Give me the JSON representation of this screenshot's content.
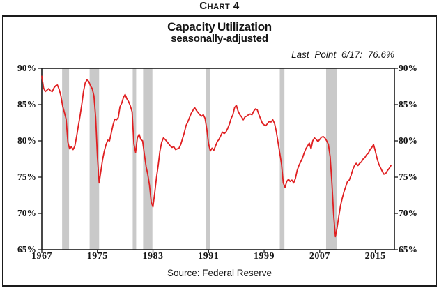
{
  "page": {
    "caption": "Chart 4"
  },
  "chart": {
    "title_line1": "Capacity Utilization",
    "title_line2": "seasonally-adjusted",
    "annotation": "Last Point 6/17: 76.6%",
    "source": "Source: Federal Reserve"
  },
  "chart_data": {
    "type": "line",
    "title": "Capacity Utilization",
    "subtitle": "seasonally-adjusted",
    "series_name": "Capacity Utilization (%)",
    "x_start": 1967.0,
    "x_step": 0.25,
    "values": [
      88.9,
      87.3,
      86.8,
      87.0,
      87.2,
      86.9,
      86.8,
      87.3,
      87.6,
      87.7,
      87.1,
      86.2,
      84.8,
      83.9,
      83.0,
      79.8,
      78.9,
      79.2,
      78.8,
      79.3,
      80.6,
      82.0,
      83.4,
      85.0,
      86.8,
      88.0,
      88.4,
      88.2,
      87.6,
      87.2,
      86.2,
      83.2,
      77.8,
      74.2,
      75.8,
      77.4,
      78.6,
      79.5,
      80.1,
      80.0,
      81.1,
      82.2,
      83.0,
      82.9,
      83.2,
      84.7,
      85.2,
      86.0,
      86.4,
      85.8,
      85.4,
      84.8,
      84.0,
      79.6,
      78.4,
      80.4,
      80.9,
      80.2,
      80.0,
      78.2,
      76.5,
      75.4,
      73.9,
      71.6,
      70.9,
      72.8,
      74.9,
      76.6,
      78.6,
      79.8,
      80.4,
      80.2,
      79.9,
      79.6,
      79.3,
      79.1,
      79.2,
      78.8,
      78.9,
      79.0,
      79.5,
      80.3,
      81.1,
      82.1,
      82.6,
      83.2,
      83.8,
      84.2,
      84.6,
      84.2,
      83.9,
      83.6,
      83.4,
      83.6,
      83.1,
      81.6,
      79.6,
      78.6,
      79.0,
      78.7,
      79.3,
      79.9,
      80.2,
      80.7,
      81.2,
      81.0,
      81.2,
      81.7,
      82.3,
      83.1,
      83.6,
      84.6,
      84.9,
      84.1,
      83.6,
      83.3,
      82.9,
      83.3,
      83.4,
      83.6,
      83.7,
      83.6,
      84.1,
      84.4,
      84.3,
      83.6,
      83.0,
      82.4,
      82.2,
      82.1,
      82.4,
      82.7,
      82.6,
      82.9,
      82.4,
      81.3,
      79.8,
      78.3,
      76.8,
      74.2,
      73.6,
      74.4,
      74.7,
      74.4,
      74.6,
      74.2,
      74.8,
      75.9,
      76.6,
      77.1,
      77.6,
      78.3,
      78.9,
      79.3,
      79.7,
      78.9,
      80.0,
      80.4,
      80.2,
      79.9,
      80.2,
      80.5,
      80.6,
      80.4,
      80.0,
      79.5,
      77.8,
      74.2,
      69.8,
      66.8,
      68.0,
      69.6,
      71.1,
      72.1,
      73.0,
      73.7,
      74.4,
      74.6,
      75.2,
      76.0,
      76.6,
      76.9,
      76.6,
      76.9,
      77.1,
      77.5,
      77.7,
      78.1,
      78.3,
      78.8,
      79.1,
      79.5,
      78.6,
      77.6,
      76.8,
      76.3,
      75.8,
      75.4,
      75.5,
      75.9,
      76.2,
      76.6
    ],
    "last_point": {
      "label": "6/17",
      "value": 76.6
    },
    "xlim": [
      1967,
      2017.75
    ],
    "ylim": [
      65,
      90
    ],
    "x_ticks": [
      1967,
      1975,
      1983,
      1991,
      1999,
      2007,
      2015
    ],
    "y_ticks": [
      65,
      70,
      75,
      80,
      85,
      90
    ],
    "y_tick_suffix": "%",
    "grid": false,
    "legend": "none",
    "recession_bands": [
      [
        1969.92,
        1970.92
      ],
      [
        1973.88,
        1975.25
      ],
      [
        1980.08,
        1980.58
      ],
      [
        1981.58,
        1982.92
      ],
      [
        1990.58,
        1991.25
      ],
      [
        2001.25,
        2001.92
      ],
      [
        2007.92,
        2009.5
      ]
    ],
    "line_color": "#e01f21",
    "band_color": "#c9c9c9",
    "frame_color": "#1a1a1a"
  }
}
